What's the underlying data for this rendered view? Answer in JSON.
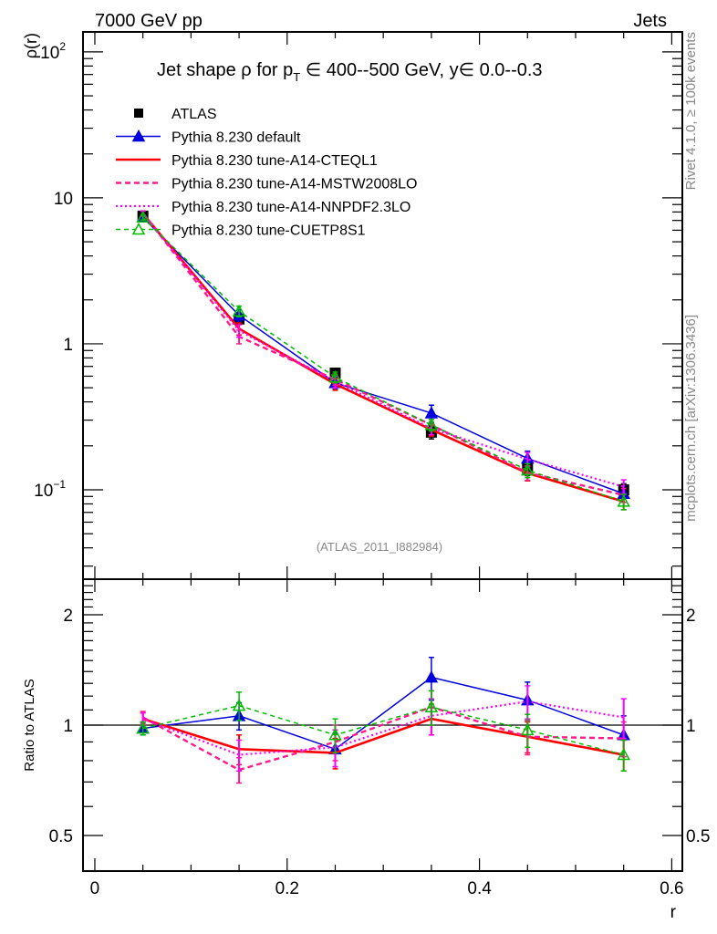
{
  "header": {
    "left": "7000 GeV pp",
    "right": "Jets",
    "side_top": "Rivet 4.1.0, ≥ 100k events",
    "side_bottom": "mcplots.cern.ch [arXiv:1306.3436]"
  },
  "chart_data": [
    {
      "type": "line",
      "title": "Jet shape ρ for p_T ∈ 400--500 GeV, y∈ 0.0--0.3",
      "title_parts": {
        "a": "Jet shape ρ for p",
        "sub": "T",
        "b": " ∈ 400--500 GeV, y∈ 0.0--0.3"
      },
      "xlabel": "r",
      "ylabel": "ρ(r)",
      "yscale": "log",
      "xlim": [
        -0.0123,
        0.611
      ],
      "ylim": [
        0.0244,
        137
      ],
      "y_ticks": [
        {
          "v": 100,
          "label": "10",
          "exp": "2"
        },
        {
          "v": 10,
          "label": "10",
          "exp": ""
        },
        {
          "v": 1,
          "label": "1",
          "exp": ""
        },
        {
          "v": 0.1,
          "label": "10",
          "exp": "−1"
        }
      ],
      "watermark": "(ATLAS_2011_I882984)",
      "legend_position": "top-left",
      "x": [
        0.05,
        0.15,
        0.25,
        0.35,
        0.45,
        0.55
      ],
      "series": [
        {
          "name": "ATLAS",
          "color": "#000000",
          "style": "marker-square",
          "values": [
            7.5,
            1.48,
            0.63,
            0.248,
            0.14,
            0.1
          ],
          "err": [
            0.3,
            0.12,
            0.05,
            0.025,
            0.015,
            0.01
          ]
        },
        {
          "name": "Pythia 8.230 default",
          "color": "#0000dd",
          "style": "solid-triangle",
          "values": [
            7.35,
            1.57,
            0.54,
            0.335,
            0.164,
            0.094
          ],
          "err": [
            0.3,
            0.14,
            0.05,
            0.045,
            0.02,
            0.012
          ]
        },
        {
          "name": "Pythia 8.230 tune-A14-CTEQL1",
          "color": "#ff0000",
          "style": "thick",
          "values": [
            7.8,
            1.27,
            0.53,
            0.258,
            0.13,
            0.083
          ],
          "err": [
            0.3,
            0.12,
            0.05,
            0.025,
            0.015,
            0.01
          ]
        },
        {
          "name": "Pythia 8.230 tune-A14-MSTW2008LO",
          "color": "#ff1a8c",
          "style": "dashed",
          "values": [
            7.85,
            1.12,
            0.57,
            0.278,
            0.131,
            0.092
          ],
          "err": [
            0.3,
            0.12,
            0.05,
            0.025,
            0.015,
            0.01
          ]
        },
        {
          "name": "Pythia 8.230 tune-A14-NNPDF2.3LO",
          "color": "#ff00ff",
          "style": "dotted",
          "values": [
            7.8,
            1.23,
            0.55,
            0.263,
            0.162,
            0.105
          ],
          "err": [
            0.3,
            0.12,
            0.05,
            0.025,
            0.018,
            0.012
          ]
        },
        {
          "name": "Pythia 8.230 tune-CUETP8S1",
          "color": "#00bb00",
          "style": "dashed-open-triangle",
          "values": [
            7.35,
            1.67,
            0.59,
            0.278,
            0.136,
            0.083
          ],
          "err": [
            0.3,
            0.14,
            0.05,
            0.025,
            0.015,
            0.01
          ]
        }
      ]
    },
    {
      "type": "line",
      "ylabel": "Ratio to ATLAS",
      "xlabel": "r",
      "yscale": "log",
      "xlim": [
        -0.0123,
        0.611
      ],
      "ylim": [
        0.4,
        2.5
      ],
      "x_ticks": [
        {
          "v": 0,
          "label": "0"
        },
        {
          "v": 0.2,
          "label": "0.2"
        },
        {
          "v": 0.4,
          "label": "0.4"
        },
        {
          "v": 0.6,
          "label": "0.6"
        }
      ],
      "y_ticks": [
        {
          "v": 2,
          "label": "2"
        },
        {
          "v": 1,
          "label": "1"
        },
        {
          "v": 0.5,
          "label": "0.5"
        }
      ],
      "x": [
        0.05,
        0.15,
        0.25,
        0.35,
        0.45,
        0.55
      ],
      "series": [
        {
          "name": "Pythia 8.230 default",
          "values": [
            0.98,
            1.06,
            0.86,
            1.35,
            1.17,
            0.94
          ],
          "err": [
            0.04,
            0.09,
            0.09,
            0.18,
            0.14,
            0.12
          ]
        },
        {
          "name": "Pythia 8.230 tune-A14-CTEQL1",
          "values": [
            1.04,
            0.86,
            0.84,
            1.04,
            0.93,
            0.83
          ],
          "err": [
            0.04,
            0.08,
            0.08,
            0.1,
            0.09,
            0.08
          ]
        },
        {
          "name": "Pythia 8.230 tune-A14-MSTW2008LO",
          "values": [
            1.05,
            0.755,
            0.9,
            1.12,
            0.93,
            0.92
          ],
          "err": [
            0.04,
            0.06,
            0.1,
            0.12,
            0.1,
            0.1
          ]
        },
        {
          "name": "Pythia 8.230 tune-A14-NNPDF2.3LO",
          "values": [
            1.04,
            0.83,
            0.87,
            1.06,
            1.16,
            1.05
          ],
          "err": [
            0.04,
            0.08,
            0.1,
            0.12,
            0.12,
            0.13
          ]
        },
        {
          "name": "Pythia 8.230 tune-CUETP8S1",
          "values": [
            0.98,
            1.13,
            0.94,
            1.12,
            0.97,
            0.83
          ],
          "err": [
            0.04,
            0.1,
            0.1,
            0.12,
            0.1,
            0.08
          ]
        }
      ]
    }
  ]
}
